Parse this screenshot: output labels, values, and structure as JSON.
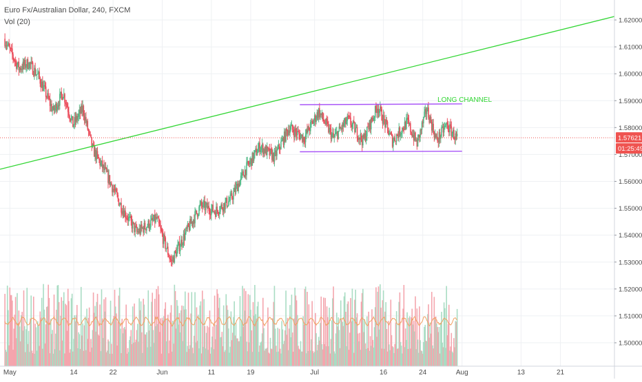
{
  "header": {
    "title": "Euro Fx/Australian Dollar, 240, FXCM",
    "indicator": "Vol (20)"
  },
  "price_tag": {
    "value": "1.57621",
    "countdown": "01:25:49"
  },
  "chart_data": {
    "type": "candlestick",
    "title": "Euro Fx/Australian Dollar, 240, FXCM",
    "xlabel": "",
    "ylabel": "",
    "ylim": [
      1.494,
      1.625
    ],
    "y_ticks": [
      {
        "value": 1.5,
        "label": "1.50000"
      },
      {
        "value": 1.51,
        "label": "1.51000"
      },
      {
        "value": 1.52,
        "label": "1.52000"
      },
      {
        "value": 1.53,
        "label": "1.53000"
      },
      {
        "value": 1.54,
        "label": "1.54000"
      },
      {
        "value": 1.55,
        "label": "1.55000"
      },
      {
        "value": 1.56,
        "label": "1.56000"
      },
      {
        "value": 1.57,
        "label": "1.57000"
      },
      {
        "value": 1.58,
        "label": "1.58000"
      },
      {
        "value": 1.59,
        "label": "1.59000"
      },
      {
        "value": 1.6,
        "label": "1.60000"
      },
      {
        "value": 1.61,
        "label": "1.61000"
      },
      {
        "value": 1.62,
        "label": "1.62000"
      }
    ],
    "x_range": [
      "2018-04-29",
      "2018-09-01"
    ],
    "x_ticks": [
      {
        "date": "2018-05-01",
        "label": "May"
      },
      {
        "date": "2018-05-14",
        "label": "14"
      },
      {
        "date": "2018-05-22",
        "label": "22"
      },
      {
        "date": "2018-06-01",
        "label": "Jun"
      },
      {
        "date": "2018-06-11",
        "label": "11"
      },
      {
        "date": "2018-06-19",
        "label": "19"
      },
      {
        "date": "2018-07-02",
        "label": "Jul"
      },
      {
        "date": "2018-07-16",
        "label": "16"
      },
      {
        "date": "2018-07-24",
        "label": "24"
      },
      {
        "date": "2018-08-01",
        "label": "Aug"
      },
      {
        "date": "2018-08-13",
        "label": "13"
      },
      {
        "date": "2018-08-21",
        "label": "21"
      }
    ],
    "grid": true,
    "price_path": [
      {
        "date": "2018-04-30",
        "close": 1.613
      },
      {
        "date": "2018-05-03",
        "close": 1.602
      },
      {
        "date": "2018-05-05",
        "close": 1.604
      },
      {
        "date": "2018-05-07",
        "close": 1.599
      },
      {
        "date": "2018-05-10",
        "close": 1.586
      },
      {
        "date": "2018-05-12",
        "close": 1.593
      },
      {
        "date": "2018-05-14",
        "close": 1.581
      },
      {
        "date": "2018-05-16",
        "close": 1.587
      },
      {
        "date": "2018-05-18",
        "close": 1.572
      },
      {
        "date": "2018-05-21",
        "close": 1.562
      },
      {
        "date": "2018-05-24",
        "close": 1.55
      },
      {
        "date": "2018-05-27",
        "close": 1.541
      },
      {
        "date": "2018-05-31",
        "close": 1.546
      },
      {
        "date": "2018-06-03",
        "close": 1.53
      },
      {
        "date": "2018-06-06",
        "close": 1.541
      },
      {
        "date": "2018-06-09",
        "close": 1.551
      },
      {
        "date": "2018-06-12",
        "close": 1.549
      },
      {
        "date": "2018-06-15",
        "close": 1.553
      },
      {
        "date": "2018-06-18",
        "close": 1.564
      },
      {
        "date": "2018-06-21",
        "close": 1.573
      },
      {
        "date": "2018-06-24",
        "close": 1.569
      },
      {
        "date": "2018-06-27",
        "close": 1.58
      },
      {
        "date": "2018-06-30",
        "close": 1.576
      },
      {
        "date": "2018-07-03",
        "close": 1.586
      },
      {
        "date": "2018-07-06",
        "close": 1.576
      },
      {
        "date": "2018-07-09",
        "close": 1.583
      },
      {
        "date": "2018-07-12",
        "close": 1.575
      },
      {
        "date": "2018-07-15",
        "close": 1.588
      },
      {
        "date": "2018-07-18",
        "close": 1.575
      },
      {
        "date": "2018-07-21",
        "close": 1.582
      },
      {
        "date": "2018-07-23",
        "close": 1.574
      },
      {
        "date": "2018-07-25",
        "close": 1.587
      },
      {
        "date": "2018-07-27",
        "close": 1.575
      },
      {
        "date": "2018-07-29",
        "close": 1.581
      },
      {
        "date": "2018-07-31",
        "close": 1.576
      }
    ],
    "volume_ma_level": 1.508,
    "last_price": 1.57621,
    "annotations": [
      {
        "type": "trendline",
        "color": "#32d634",
        "from": {
          "date": "2018-04-29",
          "value": 1.5645
        },
        "to": {
          "date": "2018-09-01",
          "value": 1.6213
        }
      },
      {
        "type": "segment",
        "color": "#a855f7",
        "from": {
          "date": "2018-06-29",
          "value": 1.5885
        },
        "to": {
          "date": "2018-08-01",
          "value": 1.5888
        }
      },
      {
        "type": "segment",
        "color": "#a855f7",
        "from": {
          "date": "2018-06-29",
          "value": 1.571
        },
        "to": {
          "date": "2018-08-01",
          "value": 1.5712
        }
      },
      {
        "type": "label",
        "text": "LONG CHANNEL",
        "color": "#32d634",
        "at": {
          "date": "2018-07-27",
          "value": 1.5895
        }
      }
    ],
    "colors": {
      "up": "#53b987",
      "down": "#eb4d5c",
      "volume_up": "#a9dcc3",
      "volume_down": "#f4a5ad",
      "volume_ma": "#f0a060",
      "last_price_tag": "#ef5350"
    }
  }
}
